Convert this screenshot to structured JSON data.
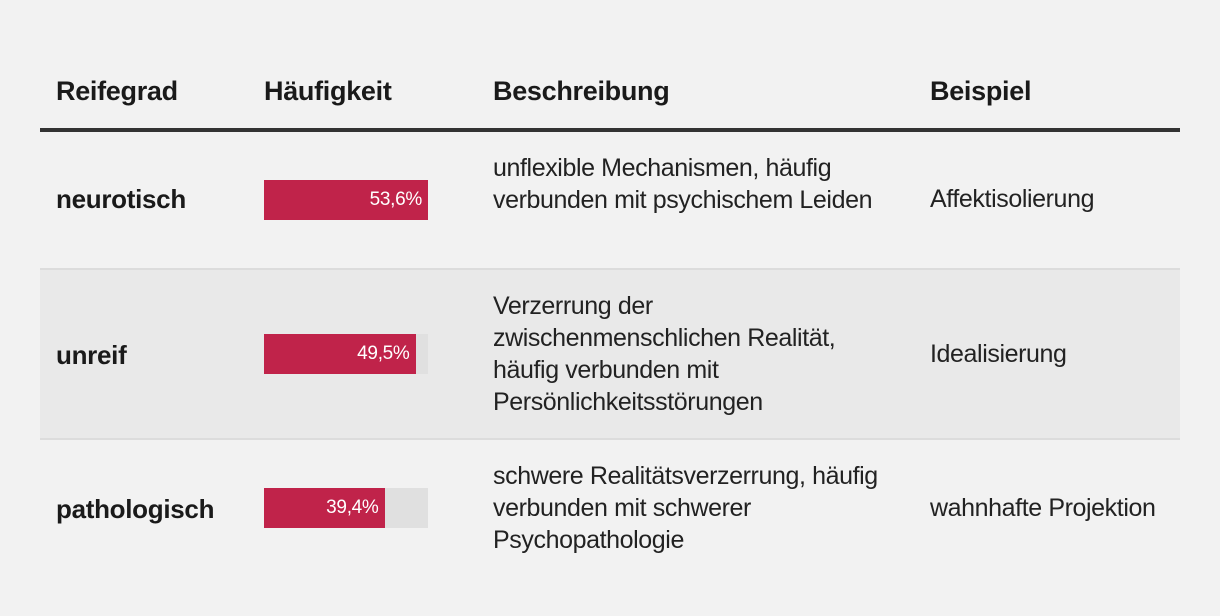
{
  "headers": {
    "grade": "Reifegrad",
    "frequency": "Häufigkeit",
    "description": "Beschreibung",
    "example": "Beispiel"
  },
  "rows": [
    {
      "grade": "neurotisch",
      "frequency_label": "53,6%",
      "frequency_fill": 1.0,
      "description": "unflexible Mechanismen, häufig verbunden mit psychischem Leiden",
      "example": "Affektisolierung"
    },
    {
      "grade": "unreif",
      "frequency_label": "49,5%",
      "frequency_fill": 0.924,
      "description": "Verzerrung der zwischenmenschlichen Realität, häufig verbunden mit Persönlichkeitsstörungen",
      "example": "Idealisierung"
    },
    {
      "grade": "pathologisch",
      "frequency_label": "39,4%",
      "frequency_fill": 0.735,
      "description": "schwere Realitätsverzerrung, häufig verbunden mit schwerer Psychopathologie",
      "example": "wahnhafte Projektion"
    }
  ],
  "chart_data": {
    "type": "table",
    "columns": [
      "Reifegrad",
      "Häufigkeit",
      "Beschreibung",
      "Beispiel"
    ],
    "categories": [
      "neurotisch",
      "unreif",
      "pathologisch"
    ],
    "values": [
      53.6,
      49.5,
      39.4
    ],
    "value_labels": [
      "53,6%",
      "49,5%",
      "39,4%"
    ]
  },
  "colors": {
    "bar": "#c0234a",
    "track": "#e0e0e0",
    "background": "#f2f2f2",
    "shaded_row": "#e9e9e9"
  }
}
